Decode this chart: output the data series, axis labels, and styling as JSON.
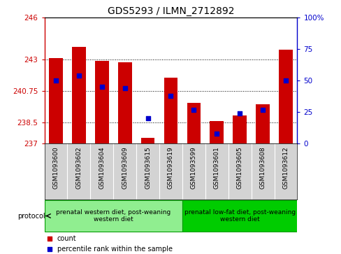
{
  "title": "GDS5293 / ILMN_2712892",
  "samples": [
    "GSM1093600",
    "GSM1093602",
    "GSM1093604",
    "GSM1093609",
    "GSM1093615",
    "GSM1093619",
    "GSM1093599",
    "GSM1093601",
    "GSM1093605",
    "GSM1093608",
    "GSM1093612"
  ],
  "bar_values": [
    243.1,
    243.9,
    242.9,
    242.8,
    237.4,
    241.7,
    239.9,
    238.6,
    239.0,
    239.8,
    243.7
  ],
  "percentile_values": [
    50,
    54,
    45,
    44,
    20,
    38,
    27,
    8,
    24,
    27,
    50
  ],
  "ylim_left": [
    237,
    246
  ],
  "yticks_left": [
    237,
    238.5,
    240.75,
    243,
    246
  ],
  "ytick_labels_left": [
    "237",
    "238.5",
    "240.75",
    "243",
    "246"
  ],
  "ylim_right": [
    0,
    100
  ],
  "yticks_right": [
    0,
    25,
    50,
    75,
    100
  ],
  "ytick_labels_right": [
    "0",
    "25",
    "50",
    "75",
    "100%"
  ],
  "bar_color": "#cc0000",
  "percentile_color": "#0000cc",
  "background_color": "#ffffff",
  "plot_bg": "#ffffff",
  "xticklabel_bg": "#d3d3d3",
  "axis_color_left": "#cc0000",
  "axis_color_right": "#0000cc",
  "group1_label": "prenatal western diet, post-weaning\nwestern diet",
  "group2_label": "prenatal low-fat diet, post-weaning\nwestern diet",
  "group1_indices": [
    0,
    1,
    2,
    3,
    4,
    5
  ],
  "group2_indices": [
    6,
    7,
    8,
    9,
    10
  ],
  "group1_color": "#90ee90",
  "group2_color": "#00cc00",
  "protocol_label": "protocol",
  "legend_count_label": "count",
  "legend_percentile_label": "percentile rank within the sample",
  "bar_width": 0.6,
  "figsize": [
    4.89,
    3.63
  ],
  "dpi": 100
}
